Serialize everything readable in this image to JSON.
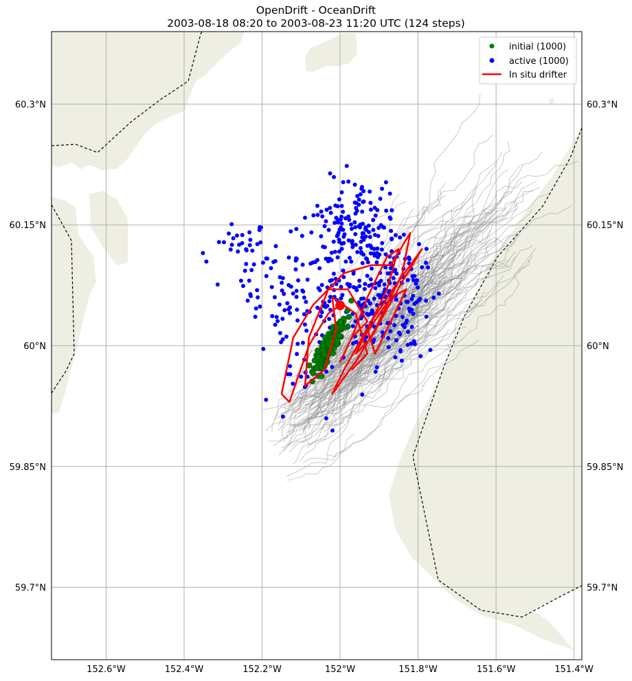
{
  "chart_data": {
    "type": "map-trajectory",
    "title": "OpenDrift - OceanDrift",
    "subtitle": "2003-08-18 08:20 to 2003-08-23 11:20 UTC (124 steps)",
    "x_ticks": [
      "152.6°W",
      "152.4°W",
      "152.2°W",
      "152°W",
      "151.8°W",
      "151.6°W",
      "151.4°W"
    ],
    "y_ticks": [
      "60.3°N",
      "60.15°N",
      "60°N",
      "59.85°N",
      "59.7°N"
    ],
    "lon_range": [
      -152.74,
      -151.38
    ],
    "lat_range": [
      59.61,
      60.39
    ],
    "grid": true,
    "legend_position": "top-right",
    "legend": [
      {
        "label": "initial (1000)",
        "color": "#008000",
        "marker": "dot"
      },
      {
        "label": "active (1000)",
        "color": "#0000ff",
        "marker": "dot"
      },
      {
        "label": "In situ drifter",
        "color": "#ff0000",
        "marker": "line"
      }
    ],
    "colors": {
      "land": "#eeeee2",
      "trajectories": "#888888",
      "initial": "#008000",
      "active": "#0000ff",
      "drifter": "#ff0000"
    },
    "drifter_track": [
      [
        -152.0,
        60.05
      ],
      [
        -152.03,
        60.04
      ],
      [
        -152.08,
        60.0
      ],
      [
        -152.13,
        59.93
      ],
      [
        -152.15,
        59.94
      ],
      [
        -152.12,
        60.01
      ],
      [
        -152.07,
        60.05
      ],
      [
        -152.03,
        60.07
      ],
      [
        -151.99,
        60.09
      ],
      [
        -151.92,
        60.1
      ],
      [
        -151.87,
        60.1
      ],
      [
        -151.82,
        60.14
      ],
      [
        -151.84,
        60.09
      ],
      [
        -151.91,
        60.02
      ],
      [
        -151.96,
        59.98
      ],
      [
        -152.02,
        59.94
      ],
      [
        -151.99,
        59.97
      ],
      [
        -151.92,
        60.03
      ],
      [
        -151.85,
        60.08
      ],
      [
        -151.79,
        60.12
      ],
      [
        -151.84,
        60.08
      ],
      [
        -151.92,
        60.01
      ],
      [
        -151.96,
        59.99
      ],
      [
        -151.94,
        60.01
      ],
      [
        -151.87,
        60.06
      ],
      [
        -151.83,
        60.07
      ],
      [
        -151.86,
        60.04
      ],
      [
        -151.91,
        59.99
      ],
      [
        -151.93,
        60.02
      ],
      [
        -151.88,
        60.07
      ],
      [
        -151.85,
        60.12
      ],
      [
        -151.88,
        60.11
      ],
      [
        -151.93,
        60.06
      ],
      [
        -151.97,
        60.01
      ],
      [
        -152.0,
        59.98
      ],
      [
        -151.97,
        60.01
      ],
      [
        -151.93,
        60.03
      ],
      [
        -151.98,
        60.07
      ],
      [
        -152.03,
        60.07
      ],
      [
        -152.08,
        60.01
      ],
      [
        -152.09,
        59.95
      ],
      [
        -152.04,
        59.97
      ],
      [
        -152.01,
        60.02
      ],
      [
        -152.02,
        60.06
      ],
      [
        -151.96,
        60.04
      ],
      [
        -151.93,
        59.99
      ],
      [
        -151.97,
        59.97
      ]
    ],
    "drifter_start": [
      -152.0,
      60.05
    ]
  }
}
